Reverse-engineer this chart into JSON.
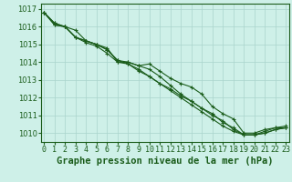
{
  "title": "Graphe pression niveau de la mer (hPa)",
  "xlabel_hours": [
    0,
    1,
    2,
    3,
    4,
    5,
    6,
    7,
    8,
    9,
    10,
    11,
    12,
    13,
    14,
    15,
    16,
    17,
    18,
    19,
    20,
    21,
    22,
    23
  ],
  "series": [
    [
      1016.8,
      1016.2,
      1016.0,
      1015.8,
      1015.2,
      1015.0,
      1014.8,
      1014.0,
      1014.0,
      1013.8,
      1013.9,
      1013.5,
      1013.1,
      1012.8,
      1012.6,
      1012.2,
      1011.5,
      1011.1,
      1010.8,
      1010.0,
      1010.0,
      1010.2,
      1010.3,
      1010.3
    ],
    [
      1016.8,
      1016.1,
      1016.0,
      1015.4,
      1015.2,
      1015.0,
      1014.7,
      1014.1,
      1014.0,
      1013.8,
      1013.6,
      1013.2,
      1012.7,
      1012.2,
      1011.8,
      1011.4,
      1011.0,
      1010.7,
      1010.2,
      1009.9,
      1009.9,
      1010.1,
      1010.3,
      1010.4
    ],
    [
      1016.8,
      1016.2,
      1016.0,
      1015.4,
      1015.1,
      1014.9,
      1014.5,
      1014.0,
      1013.9,
      1013.5,
      1013.2,
      1012.8,
      1012.5,
      1012.1,
      1011.8,
      1011.4,
      1011.1,
      1010.6,
      1010.3,
      1009.9,
      1009.9,
      1010.0,
      1010.2,
      1010.3
    ],
    [
      1016.8,
      1016.1,
      1016.0,
      1015.4,
      1015.2,
      1015.0,
      1014.7,
      1014.1,
      1013.9,
      1013.6,
      1013.2,
      1012.8,
      1012.4,
      1012.0,
      1011.6,
      1011.2,
      1010.8,
      1010.4,
      1010.1,
      1009.9,
      1009.9,
      1010.0,
      1010.2,
      1010.3
    ]
  ],
  "ylim": [
    1009.5,
    1017.3
  ],
  "yticks": [
    1010,
    1011,
    1012,
    1013,
    1014,
    1015,
    1016,
    1017
  ],
  "xlim": [
    -0.3,
    23.3
  ],
  "line_color": "#1a5c1a",
  "marker": "+",
  "markersize": 3,
  "linewidth": 0.8,
  "bg_color": "#cef0e8",
  "grid_color": "#aad4cc",
  "tick_label_color": "#1a5c1a",
  "title_color": "#1a5c1a",
  "title_fontsize": 7.5,
  "tick_fontsize": 6.0
}
